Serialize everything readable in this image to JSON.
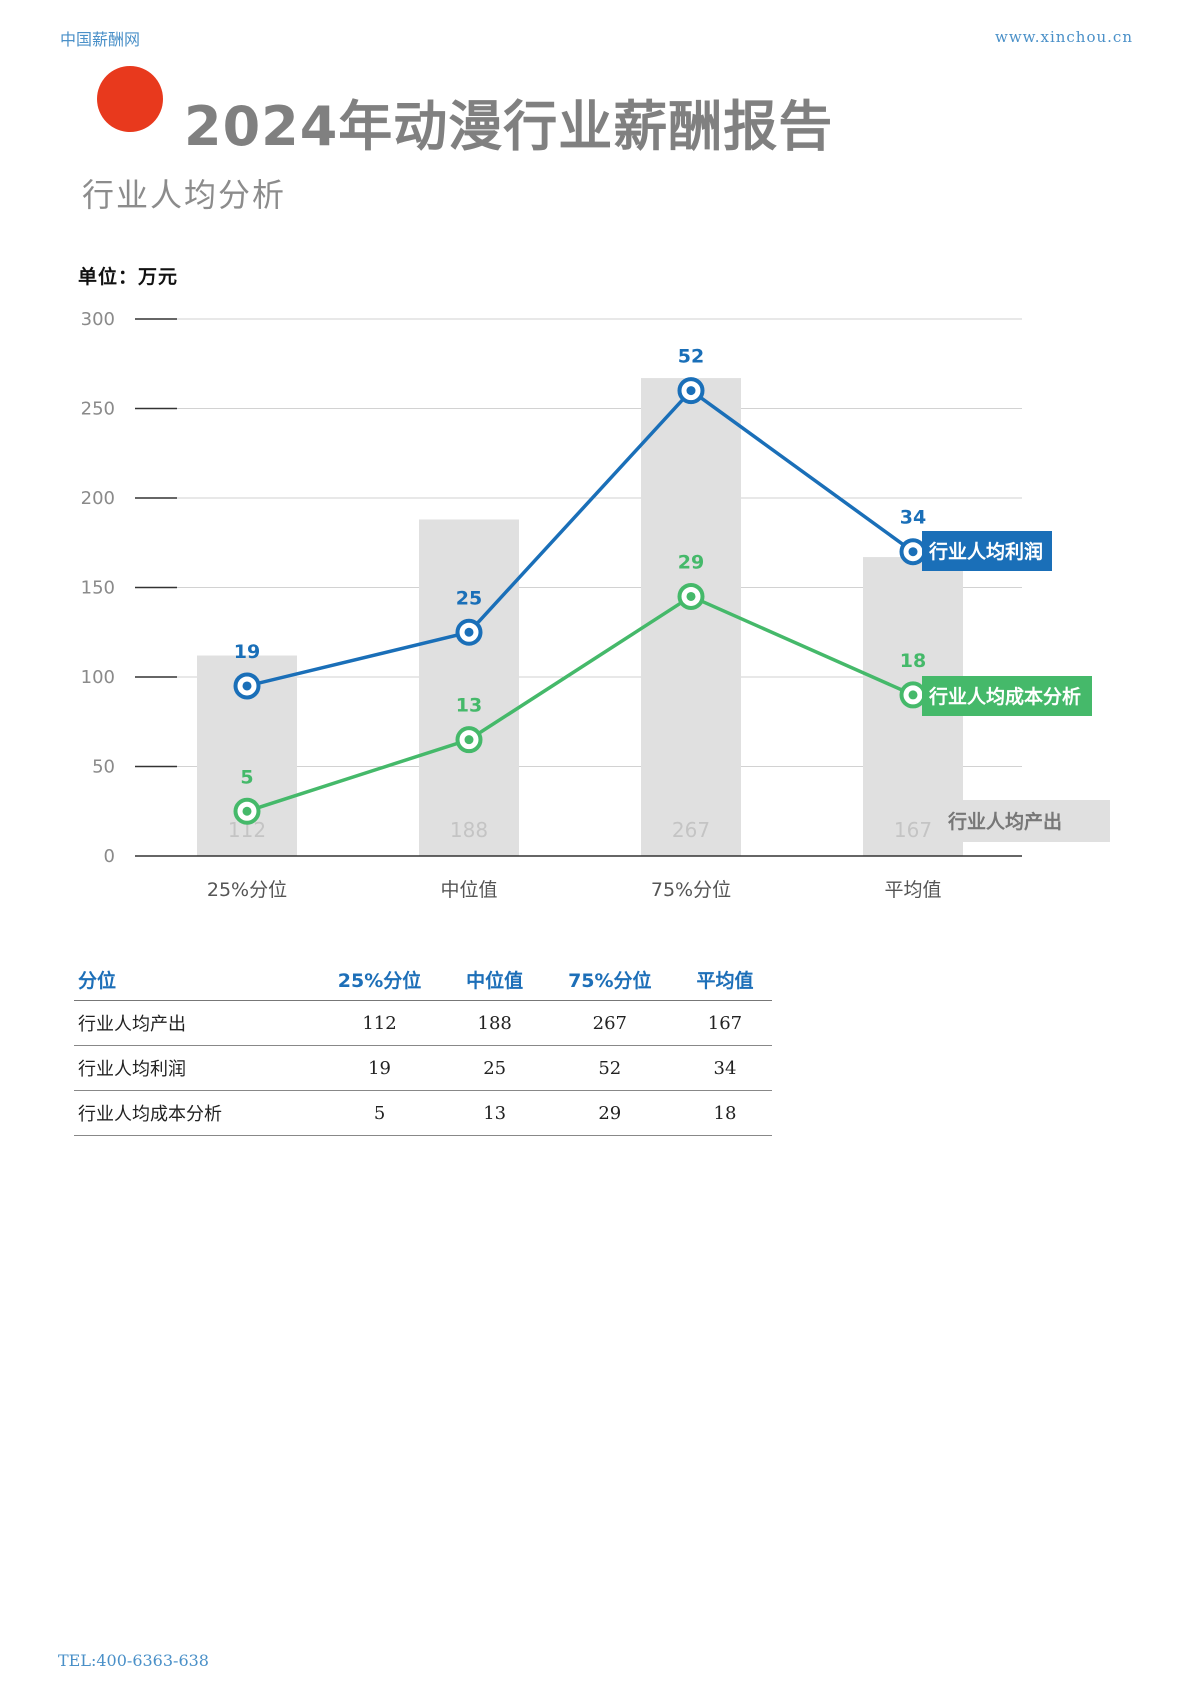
{
  "header": {
    "left": "中国薪酬网",
    "right": "www.xinchou.cn"
  },
  "title": "2024年动漫行业薪酬报告",
  "subtitle": "行业人均分析",
  "unit_label": "单位：万元",
  "colors": {
    "accent_dot": "#e8391d",
    "profit": "#1a6fb8",
    "cost": "#45b96a",
    "bar": "#e0e0e0"
  },
  "chart_data": {
    "type": "bar",
    "categories": [
      "25%分位",
      "中位值",
      "75%分位",
      "平均值"
    ],
    "ylim": [
      0,
      300
    ],
    "yticks": [
      0,
      50,
      100,
      150,
      200,
      250,
      300
    ],
    "grid": true,
    "series": [
      {
        "name": "行业人均产出",
        "type": "bar",
        "values": [
          112,
          188,
          267,
          167
        ]
      },
      {
        "name": "行业人均利润",
        "type": "line",
        "plot_values": [
          95,
          125,
          260,
          170
        ],
        "labels": [
          19,
          25,
          52,
          34
        ]
      },
      {
        "name": "行业人均成本分析",
        "type": "line",
        "plot_values": [
          25,
          65,
          145,
          90
        ],
        "labels": [
          5,
          13,
          29,
          18
        ]
      }
    ]
  },
  "table": {
    "headers": [
      "分位",
      "25%分位",
      "中位值",
      "75%分位",
      "平均值"
    ],
    "rows": [
      [
        "行业人均产出",
        "112",
        "188",
        "267",
        "167"
      ],
      [
        "行业人均利润",
        "19",
        "25",
        "52",
        "34"
      ],
      [
        "行业人均成本分析",
        "5",
        "13",
        "29",
        "18"
      ]
    ]
  },
  "footer": {
    "tel": "TEL:400-6363-638"
  }
}
